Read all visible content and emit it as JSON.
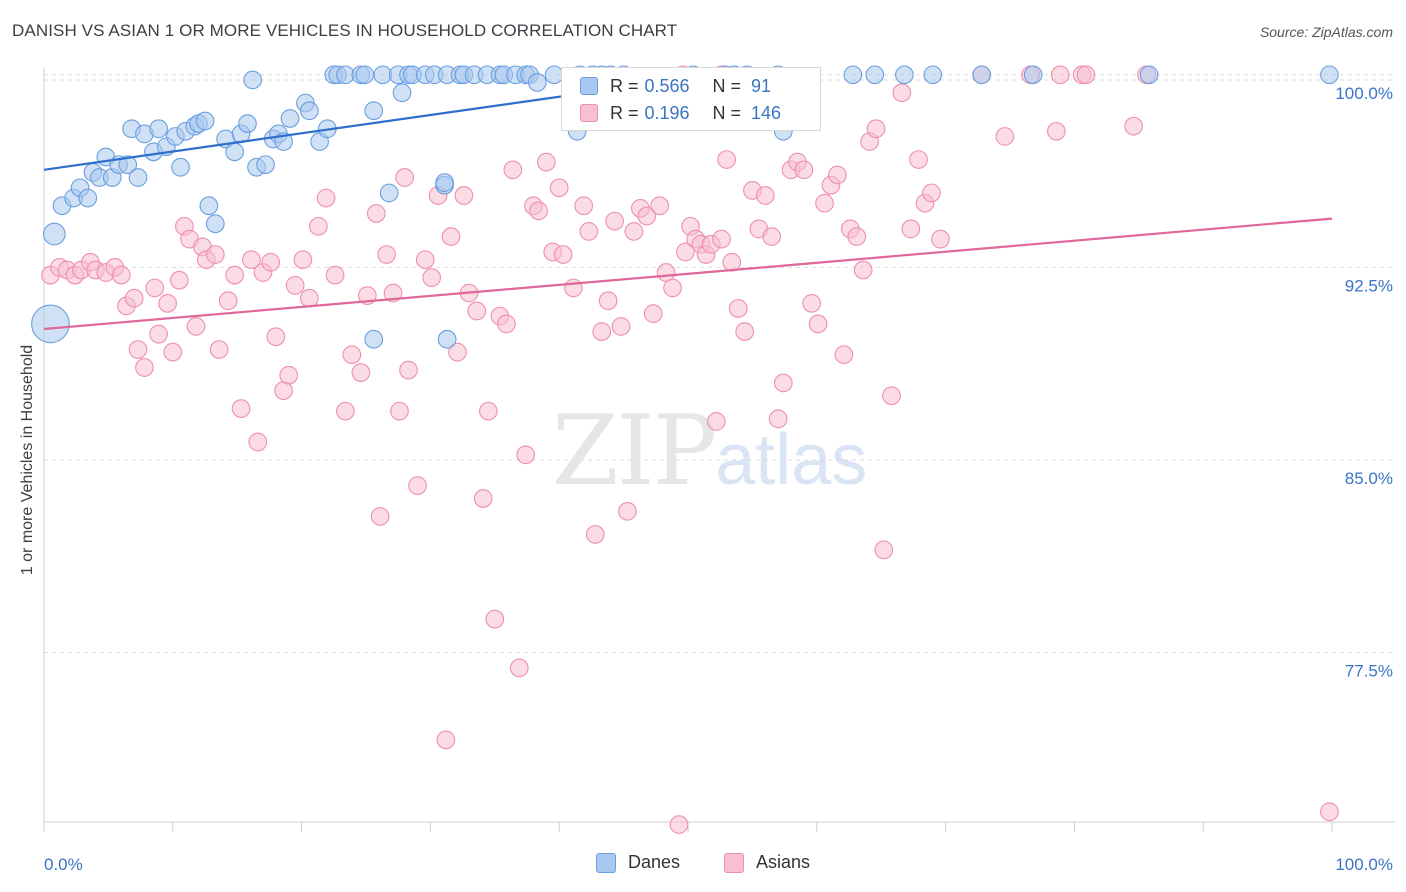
{
  "title": "DANISH VS ASIAN 1 OR MORE VEHICLES IN HOUSEHOLD CORRELATION CHART",
  "source": "Source: ZipAtlas.com",
  "watermark": {
    "zip": "ZIP",
    "atlas": "atlas"
  },
  "legend": {
    "rows": [
      {
        "r_label": "R =",
        "r_value": "0.566",
        "n_label": "N =",
        "n_value": "91"
      },
      {
        "r_label": "R =",
        "r_value": "0.196",
        "n_label": "N =",
        "n_value": "146"
      }
    ]
  },
  "bottom_legend": {
    "danes": "Danes",
    "asians": "Asians"
  },
  "colors": {
    "danes_fill": "#a9c8ef",
    "danes_stroke": "#6a9fe0",
    "danes_line": "#2e6fcc",
    "asians_fill": "#f7bfd0",
    "asians_stroke": "#ee8fae",
    "asians_line": "#e0679a",
    "tick_label": "#3b74c4",
    "grid": "#dddddd"
  },
  "chart_data": {
    "type": "scatter",
    "title": "DANISH VS ASIAN 1 OR MORE VEHICLES IN HOUSEHOLD CORRELATION CHART",
    "xlabel": "",
    "ylabel": "1 or more Vehicles in Household",
    "xlim": [
      0,
      100
    ],
    "ylim": [
      70.9,
      101.2
    ],
    "x_tick_labels": [
      "0.0%",
      "100.0%"
    ],
    "y_ticks": [
      100.0,
      92.5,
      85.0,
      77.5
    ],
    "y_tick_labels": [
      "100.0%",
      "92.5%",
      "85.0%",
      "77.5%"
    ],
    "series": [
      {
        "name": "Danes",
        "R": 0.566,
        "N": 91,
        "trend": {
          "x": [
            0,
            52
          ],
          "y": [
            96.3,
            100.0
          ]
        },
        "points": [
          [
            0.5,
            90.3,
            18
          ],
          [
            0.8,
            93.8,
            10
          ],
          [
            1.4,
            94.9,
            8
          ],
          [
            2.3,
            95.2,
            8
          ],
          [
            2.8,
            95.6,
            8
          ],
          [
            3.4,
            95.2,
            8
          ],
          [
            3.8,
            96.2,
            8
          ],
          [
            4.3,
            96.0,
            8
          ],
          [
            4.8,
            96.8,
            8
          ],
          [
            5.3,
            96.0,
            8
          ],
          [
            5.8,
            96.5,
            8
          ],
          [
            6.5,
            96.5,
            8
          ],
          [
            7.3,
            96.0,
            8
          ],
          [
            6.8,
            97.9,
            8
          ],
          [
            7.8,
            97.7,
            8
          ],
          [
            8.5,
            97.0,
            8
          ],
          [
            8.9,
            97.9,
            8
          ],
          [
            9.5,
            97.2,
            8
          ],
          [
            10.2,
            97.6,
            8
          ],
          [
            10.6,
            96.4,
            8
          ],
          [
            11.0,
            97.8,
            8
          ],
          [
            11.7,
            98.0,
            8
          ],
          [
            12.0,
            98.1,
            8
          ],
          [
            12.5,
            98.2,
            8
          ],
          [
            12.8,
            94.9,
            8
          ],
          [
            13.3,
            94.2,
            8
          ],
          [
            14.1,
            97.5,
            8
          ],
          [
            14.8,
            97.0,
            8
          ],
          [
            15.3,
            97.7,
            8
          ],
          [
            15.8,
            98.1,
            8
          ],
          [
            16.2,
            99.8,
            8
          ],
          [
            16.5,
            96.4,
            8
          ],
          [
            17.2,
            96.5,
            8
          ],
          [
            17.8,
            97.5,
            8
          ],
          [
            18.2,
            97.7,
            8
          ],
          [
            18.6,
            97.4,
            8
          ],
          [
            19.1,
            98.3,
            8
          ],
          [
            20.3,
            98.9,
            8
          ],
          [
            20.6,
            98.6,
            8
          ],
          [
            21.4,
            97.4,
            8
          ],
          [
            22.0,
            97.9,
            8
          ],
          [
            22.5,
            100.0,
            8
          ],
          [
            22.8,
            100.0,
            8
          ],
          [
            23.4,
            100.0,
            8
          ],
          [
            24.6,
            100.0,
            8
          ],
          [
            24.9,
            100.0,
            8
          ],
          [
            26.3,
            100.0,
            8
          ],
          [
            25.6,
            98.6,
            8
          ],
          [
            26.8,
            95.4,
            8
          ],
          [
            27.5,
            100.0,
            8
          ],
          [
            27.8,
            99.3,
            8
          ],
          [
            28.3,
            100.0,
            8
          ],
          [
            28.6,
            100.0,
            8
          ],
          [
            29.6,
            100.0,
            8
          ],
          [
            30.3,
            100.0,
            8
          ],
          [
            31.3,
            100.0,
            8
          ],
          [
            32.3,
            100.0,
            8
          ],
          [
            32.6,
            100.0,
            8
          ],
          [
            33.4,
            100.0,
            8
          ],
          [
            34.4,
            100.0,
            8
          ],
          [
            35.4,
            100.0,
            8
          ],
          [
            35.7,
            100.0,
            8
          ],
          [
            36.6,
            100.0,
            8
          ],
          [
            37.4,
            100.0,
            8
          ],
          [
            37.7,
            100.0,
            8
          ],
          [
            38.3,
            99.7,
            8
          ],
          [
            39.6,
            100.0,
            8
          ],
          [
            41.6,
            100.0,
            8
          ],
          [
            42.6,
            100.0,
            8
          ],
          [
            43.3,
            100.0,
            8
          ],
          [
            41.4,
            97.8,
            8
          ],
          [
            31.1,
            95.7,
            8
          ],
          [
            31.3,
            89.7,
            8
          ],
          [
            25.6,
            89.7,
            8
          ],
          [
            44.0,
            100.0,
            8
          ],
          [
            45.0,
            100.0,
            8
          ],
          [
            50.4,
            100.0,
            8
          ],
          [
            52.9,
            100.0,
            8
          ],
          [
            53.6,
            100.0,
            8
          ],
          [
            54.6,
            100.0,
            8
          ],
          [
            57.0,
            100.0,
            8
          ],
          [
            57.4,
            97.8,
            8
          ],
          [
            62.8,
            100.0,
            8
          ],
          [
            64.5,
            100.0,
            8
          ],
          [
            66.8,
            100.0,
            8
          ],
          [
            69.0,
            100.0,
            8
          ],
          [
            72.8,
            100.0,
            8
          ],
          [
            76.8,
            100.0,
            8
          ],
          [
            85.8,
            100.0,
            8
          ],
          [
            99.8,
            100.0,
            8
          ],
          [
            31.1,
            95.8,
            8
          ]
        ]
      },
      {
        "name": "Asians",
        "R": 0.196,
        "N": 146,
        "trend": {
          "x": [
            0,
            100
          ],
          "y": [
            90.1,
            94.4
          ]
        },
        "points": [
          [
            0.5,
            92.2,
            8
          ],
          [
            1.2,
            92.5,
            8
          ],
          [
            1.8,
            92.4,
            8
          ],
          [
            2.4,
            92.2,
            8
          ],
          [
            2.9,
            92.4,
            8
          ],
          [
            3.6,
            92.7,
            8
          ],
          [
            4.0,
            92.4,
            8
          ],
          [
            4.8,
            92.3,
            8
          ],
          [
            5.5,
            92.5,
            8
          ],
          [
            6.0,
            92.2,
            8
          ],
          [
            6.4,
            91.0,
            8
          ],
          [
            7.0,
            91.3,
            8
          ],
          [
            7.3,
            89.3,
            8
          ],
          [
            7.8,
            88.6,
            8
          ],
          [
            8.6,
            91.7,
            8
          ],
          [
            8.9,
            89.9,
            8
          ],
          [
            9.6,
            91.1,
            8
          ],
          [
            10.0,
            89.2,
            8
          ],
          [
            10.5,
            92.0,
            8
          ],
          [
            10.9,
            94.1,
            8
          ],
          [
            11.3,
            93.6,
            8
          ],
          [
            11.8,
            90.2,
            8
          ],
          [
            12.3,
            93.3,
            8
          ],
          [
            12.6,
            92.8,
            8
          ],
          [
            13.3,
            93.0,
            8
          ],
          [
            13.6,
            89.3,
            8
          ],
          [
            14.3,
            91.2,
            8
          ],
          [
            14.8,
            92.2,
            8
          ],
          [
            15.3,
            87.0,
            8
          ],
          [
            16.1,
            92.8,
            8
          ],
          [
            16.6,
            85.7,
            8
          ],
          [
            17.0,
            92.3,
            8
          ],
          [
            17.6,
            92.7,
            8
          ],
          [
            18.0,
            89.8,
            8
          ],
          [
            18.6,
            87.7,
            8
          ],
          [
            19.0,
            88.3,
            8
          ],
          [
            19.5,
            91.8,
            8
          ],
          [
            20.1,
            92.8,
            8
          ],
          [
            20.6,
            91.3,
            8
          ],
          [
            21.3,
            94.1,
            8
          ],
          [
            21.9,
            95.2,
            8
          ],
          [
            22.6,
            92.2,
            8
          ],
          [
            23.4,
            86.9,
            8
          ],
          [
            23.9,
            89.1,
            8
          ],
          [
            24.6,
            88.4,
            8
          ],
          [
            25.1,
            91.4,
            8
          ],
          [
            25.8,
            94.6,
            8
          ],
          [
            26.1,
            82.8,
            8
          ],
          [
            26.6,
            93.0,
            8
          ],
          [
            27.1,
            91.5,
            8
          ],
          [
            27.6,
            86.9,
            8
          ],
          [
            28.0,
            96.0,
            8
          ],
          [
            28.3,
            88.5,
            8
          ],
          [
            29.0,
            84.0,
            8
          ],
          [
            29.6,
            92.8,
            8
          ],
          [
            30.1,
            92.1,
            8
          ],
          [
            30.6,
            95.3,
            8
          ],
          [
            31.2,
            74.1,
            8
          ],
          [
            31.6,
            93.7,
            8
          ],
          [
            32.1,
            89.2,
            8
          ],
          [
            32.6,
            95.3,
            8
          ],
          [
            33.0,
            91.5,
            8
          ],
          [
            33.6,
            90.8,
            8
          ],
          [
            34.1,
            83.5,
            8
          ],
          [
            34.5,
            86.9,
            8
          ],
          [
            35.0,
            78.8,
            8
          ],
          [
            35.4,
            90.6,
            8
          ],
          [
            35.9,
            90.3,
            8
          ],
          [
            36.4,
            96.3,
            8
          ],
          [
            36.9,
            76.9,
            8
          ],
          [
            37.4,
            85.2,
            8
          ],
          [
            38.0,
            94.9,
            8
          ],
          [
            38.4,
            94.7,
            8
          ],
          [
            39.0,
            96.6,
            8
          ],
          [
            39.5,
            93.1,
            8
          ],
          [
            40.0,
            95.6,
            8
          ],
          [
            40.3,
            93.0,
            8
          ],
          [
            41.1,
            91.7,
            8
          ],
          [
            41.9,
            94.9,
            8
          ],
          [
            42.3,
            93.9,
            8
          ],
          [
            42.8,
            82.1,
            8
          ],
          [
            43.3,
            90.0,
            8
          ],
          [
            43.8,
            91.2,
            8
          ],
          [
            44.3,
            94.3,
            8
          ],
          [
            44.8,
            90.2,
            8
          ],
          [
            45.3,
            83.0,
            8
          ],
          [
            45.8,
            93.9,
            8
          ],
          [
            46.3,
            94.8,
            8
          ],
          [
            46.8,
            94.5,
            8
          ],
          [
            47.3,
            90.7,
            8
          ],
          [
            47.8,
            94.9,
            8
          ],
          [
            48.3,
            92.3,
            8
          ],
          [
            48.8,
            91.7,
            8
          ],
          [
            49.3,
            70.8,
            8
          ],
          [
            49.8,
            93.1,
            8
          ],
          [
            50.2,
            94.1,
            8
          ],
          [
            50.6,
            93.6,
            8
          ],
          [
            51.0,
            93.4,
            8
          ],
          [
            51.4,
            93.0,
            8
          ],
          [
            51.8,
            93.4,
            8
          ],
          [
            52.2,
            86.5,
            8
          ],
          [
            52.6,
            93.6,
            8
          ],
          [
            53.0,
            96.7,
            8
          ],
          [
            53.4,
            92.7,
            8
          ],
          [
            53.9,
            90.9,
            8
          ],
          [
            54.4,
            90.0,
            8
          ],
          [
            55.0,
            95.5,
            8
          ],
          [
            55.5,
            94.0,
            8
          ],
          [
            56.0,
            95.3,
            8
          ],
          [
            56.5,
            93.7,
            8
          ],
          [
            57.0,
            86.6,
            8
          ],
          [
            57.4,
            88.0,
            8
          ],
          [
            58.0,
            96.3,
            8
          ],
          [
            58.5,
            96.6,
            8
          ],
          [
            59.0,
            96.3,
            8
          ],
          [
            59.6,
            91.1,
            8
          ],
          [
            60.1,
            90.3,
            8
          ],
          [
            60.6,
            95.0,
            8
          ],
          [
            61.1,
            95.7,
            8
          ],
          [
            61.6,
            96.1,
            8
          ],
          [
            62.1,
            89.1,
            8
          ],
          [
            62.6,
            94.0,
            8
          ],
          [
            63.1,
            93.7,
            8
          ],
          [
            63.6,
            92.4,
            8
          ],
          [
            64.1,
            97.4,
            8
          ],
          [
            64.6,
            97.9,
            8
          ],
          [
            65.2,
            81.5,
            8
          ],
          [
            65.8,
            87.5,
            8
          ],
          [
            66.6,
            99.3,
            8
          ],
          [
            67.3,
            94.0,
            8
          ],
          [
            67.9,
            96.7,
            8
          ],
          [
            68.4,
            95.0,
            8
          ],
          [
            68.9,
            95.4,
            8
          ],
          [
            69.6,
            93.6,
            8
          ],
          [
            72.8,
            100.0,
            8
          ],
          [
            74.6,
            97.6,
            8
          ],
          [
            76.6,
            100.0,
            8
          ],
          [
            78.6,
            97.8,
            8
          ],
          [
            78.9,
            100.0,
            8
          ],
          [
            80.6,
            100.0,
            8
          ],
          [
            80.9,
            100.0,
            8
          ],
          [
            84.6,
            98.0,
            8
          ],
          [
            85.6,
            100.0,
            8
          ],
          [
            99.8,
            71.3,
            8
          ],
          [
            49.6,
            100.0,
            8
          ],
          [
            52.6,
            100.0,
            8
          ]
        ]
      }
    ]
  },
  "axis": {
    "ylabel": "1 or more Vehicles in Household",
    "x_min_label": "0.0%",
    "x_max_label": "100.0%"
  }
}
